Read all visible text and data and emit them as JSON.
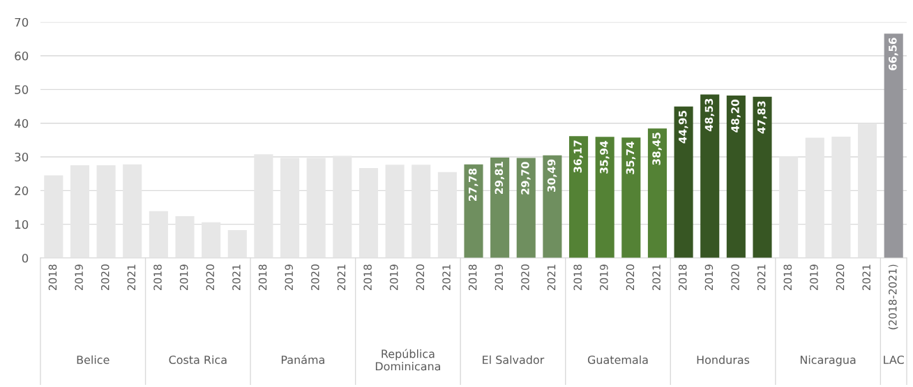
{
  "chart_data": {
    "type": "bar",
    "categories": [
      "2018",
      "2019",
      "2020",
      "2021",
      "2018",
      "2019",
      "2020",
      "2021",
      "2018",
      "2019",
      "2020",
      "2021",
      "2018",
      "2019",
      "2020",
      "2021",
      "2018",
      "2019",
      "2020",
      "2021",
      "2018",
      "2019",
      "2020",
      "2021",
      "2018",
      "2019",
      "2020",
      "2021",
      "2018",
      "2019",
      "2020",
      "2021",
      "(2018-2021)"
    ],
    "values": [
      24.5,
      27.5,
      27.5,
      27.8,
      13.9,
      12.4,
      10.6,
      8.3,
      30.8,
      29.7,
      29.7,
      30.3,
      26.7,
      27.7,
      27.7,
      25.5,
      27.78,
      29.81,
      29.7,
      30.49,
      36.17,
      35.94,
      35.74,
      38.45,
      44.95,
      48.53,
      48.2,
      47.83,
      30.2,
      35.7,
      36.0,
      40.0,
      66.56
    ],
    "colors": [
      "#e7e7e7",
      "#e7e7e7",
      "#e7e7e7",
      "#e7e7e7",
      "#e7e7e7",
      "#e7e7e7",
      "#e7e7e7",
      "#e7e7e7",
      "#e7e7e7",
      "#e7e7e7",
      "#e7e7e7",
      "#e7e7e7",
      "#e7e7e7",
      "#e7e7e7",
      "#e7e7e7",
      "#e7e7e7",
      "#6f8f5f",
      "#6f8f5f",
      "#6f8f5f",
      "#6f8f5f",
      "#548235",
      "#548235",
      "#548235",
      "#548235",
      "#375623",
      "#375623",
      "#375623",
      "#375623",
      "#e7e7e7",
      "#e7e7e7",
      "#e7e7e7",
      "#e7e7e7",
      "#96969b"
    ],
    "value_labels": [
      null,
      null,
      null,
      null,
      null,
      null,
      null,
      null,
      null,
      null,
      null,
      null,
      null,
      null,
      null,
      null,
      "27,78",
      "29,81",
      "29,70",
      "30,49",
      "36,17",
      "35,94",
      "35,74",
      "38,45",
      "44,95",
      "48,53",
      "48,20",
      "47,83",
      null,
      null,
      null,
      null,
      "66,56"
    ],
    "annotations": [
      "Belice",
      "Costa Rica",
      "Panáma",
      "República\nDominicana",
      "El Salvador",
      "Guatemala",
      "Honduras",
      "Nicaragua",
      "LAC"
    ],
    "ylim": [
      0,
      70
    ],
    "yticks": [
      0,
      10,
      20,
      30,
      40,
      50,
      60,
      70
    ],
    "grid": "y",
    "legend": false
  }
}
